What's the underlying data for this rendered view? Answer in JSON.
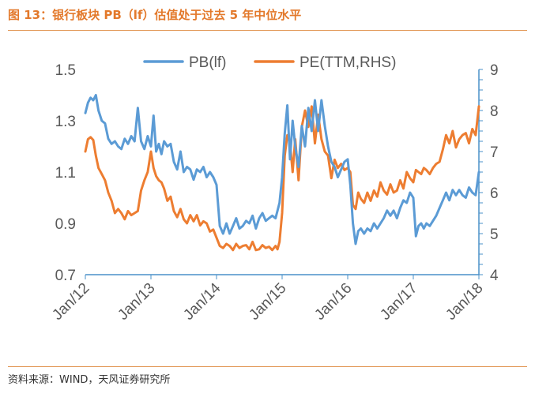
{
  "header": {
    "title": "图 13：银行板块 PB（lf）估值处于过去 5 年中位水平"
  },
  "footer": {
    "source": "资料来源：WIND，天风证券研究所"
  },
  "colors": {
    "pb": "#5b9bd5",
    "pe": "#ed7d31",
    "axis": "#4a90c8",
    "text": "#595959",
    "accent": "#e3792b"
  },
  "chart_data": {
    "type": "line",
    "title": "",
    "xlabel": "",
    "ylabel": "",
    "x_ticks": [
      "Jan/12",
      "Jan/13",
      "Jan/14",
      "Jan/15",
      "Jan/16",
      "Jan/17",
      "Jan/18"
    ],
    "xlim": [
      2012.0,
      2018.0
    ],
    "y_left": {
      "ylim": [
        0.7,
        1.5
      ],
      "ticks": [
        "1.5",
        "1.3",
        "1.1",
        "0.9",
        "0.7"
      ]
    },
    "y_right": {
      "ylim": [
        4,
        9
      ],
      "ticks": [
        "9",
        "8",
        "7",
        "6",
        "5",
        "4"
      ]
    },
    "legend": {
      "position": "top"
    },
    "series": [
      {
        "name": "PB(lf)",
        "axis": "left",
        "x": [
          2012.0,
          2012.04,
          2012.08,
          2012.12,
          2012.16,
          2012.2,
          2012.25,
          2012.3,
          2012.35,
          2012.4,
          2012.45,
          2012.5,
          2012.55,
          2012.6,
          2012.65,
          2012.7,
          2012.75,
          2012.8,
          2012.85,
          2012.9,
          2012.95,
          2013.0,
          2013.04,
          2013.08,
          2013.12,
          2013.16,
          2013.2,
          2013.25,
          2013.3,
          2013.35,
          2013.4,
          2013.45,
          2013.5,
          2013.55,
          2013.6,
          2013.65,
          2013.7,
          2013.75,
          2013.8,
          2013.85,
          2013.9,
          2013.95,
          2014.0,
          2014.05,
          2014.1,
          2014.15,
          2014.2,
          2014.25,
          2014.3,
          2014.35,
          2014.4,
          2014.45,
          2014.5,
          2014.55,
          2014.6,
          2014.65,
          2014.7,
          2014.75,
          2014.8,
          2014.85,
          2014.9,
          2014.93,
          2014.96,
          2015.0,
          2015.04,
          2015.08,
          2015.12,
          2015.16,
          2015.2,
          2015.25,
          2015.3,
          2015.35,
          2015.4,
          2015.45,
          2015.5,
          2015.55,
          2015.6,
          2015.65,
          2015.7,
          2015.75,
          2015.8,
          2015.85,
          2015.9,
          2015.95,
          2016.0,
          2016.04,
          2016.08,
          2016.12,
          2016.16,
          2016.2,
          2016.25,
          2016.3,
          2016.35,
          2016.4,
          2016.45,
          2016.5,
          2016.55,
          2016.6,
          2016.65,
          2016.7,
          2016.75,
          2016.8,
          2016.85,
          2016.9,
          2016.95,
          2017.0,
          2017.04,
          2017.08,
          2017.12,
          2017.16,
          2017.2,
          2017.25,
          2017.3,
          2017.35,
          2017.4,
          2017.45,
          2017.5,
          2017.55,
          2017.6,
          2017.65,
          2017.7,
          2017.75,
          2017.8,
          2017.85,
          2017.9,
          2017.95,
          2018.0
        ],
        "values": [
          1.33,
          1.37,
          1.39,
          1.38,
          1.4,
          1.34,
          1.3,
          1.29,
          1.23,
          1.21,
          1.22,
          1.2,
          1.19,
          1.23,
          1.21,
          1.24,
          1.22,
          1.35,
          1.22,
          1.19,
          1.24,
          1.2,
          1.32,
          1.18,
          1.21,
          1.17,
          1.22,
          1.2,
          1.21,
          1.14,
          1.11,
          1.18,
          1.1,
          1.12,
          1.11,
          1.07,
          1.11,
          1.1,
          1.12,
          1.08,
          1.1,
          1.08,
          1.05,
          0.89,
          0.86,
          0.9,
          0.86,
          0.89,
          0.92,
          0.88,
          0.89,
          0.91,
          0.9,
          0.93,
          0.88,
          0.92,
          0.94,
          0.91,
          0.92,
          0.93,
          0.92,
          0.95,
          0.98,
          1.08,
          1.25,
          1.36,
          1.15,
          1.3,
          1.2,
          1.12,
          1.28,
          1.2,
          1.35,
          1.26,
          1.38,
          1.26,
          1.38,
          1.28,
          1.2,
          1.14,
          1.12,
          1.08,
          1.11,
          1.14,
          1.15,
          1.05,
          0.9,
          0.82,
          0.87,
          0.88,
          0.86,
          0.88,
          0.87,
          0.9,
          0.88,
          0.9,
          0.92,
          0.95,
          0.93,
          0.95,
          0.92,
          0.96,
          0.99,
          0.98,
          1.02,
          1.0,
          0.85,
          0.89,
          0.9,
          0.88,
          0.9,
          0.89,
          0.91,
          0.93,
          0.96,
          0.99,
          1.02,
          0.99,
          1.03,
          1.01,
          1.03,
          1.01,
          1.0,
          1.04,
          1.02,
          1.01,
          1.1
        ]
      },
      {
        "name": "PE(TTM,RHS)",
        "axis": "right",
        "x": [
          2012.0,
          2012.04,
          2012.08,
          2012.12,
          2012.16,
          2012.2,
          2012.25,
          2012.3,
          2012.35,
          2012.4,
          2012.45,
          2012.5,
          2012.55,
          2012.6,
          2012.65,
          2012.7,
          2012.75,
          2012.8,
          2012.85,
          2012.9,
          2012.95,
          2013.0,
          2013.04,
          2013.08,
          2013.12,
          2013.16,
          2013.2,
          2013.25,
          2013.3,
          2013.35,
          2013.4,
          2013.45,
          2013.5,
          2013.55,
          2013.6,
          2013.65,
          2013.7,
          2013.75,
          2013.8,
          2013.85,
          2013.9,
          2013.95,
          2014.0,
          2014.05,
          2014.1,
          2014.15,
          2014.2,
          2014.25,
          2014.3,
          2014.35,
          2014.4,
          2014.45,
          2014.5,
          2014.55,
          2014.6,
          2014.65,
          2014.7,
          2014.75,
          2014.8,
          2014.85,
          2014.9,
          2014.93,
          2014.96,
          2015.0,
          2015.04,
          2015.08,
          2015.12,
          2015.16,
          2015.2,
          2015.25,
          2015.3,
          2015.35,
          2015.4,
          2015.45,
          2015.5,
          2015.55,
          2015.6,
          2015.65,
          2015.7,
          2015.75,
          2015.8,
          2015.85,
          2015.9,
          2015.95,
          2016.0,
          2016.04,
          2016.08,
          2016.12,
          2016.16,
          2016.2,
          2016.25,
          2016.3,
          2016.35,
          2016.4,
          2016.45,
          2016.5,
          2016.55,
          2016.6,
          2016.65,
          2016.7,
          2016.75,
          2016.8,
          2016.85,
          2016.9,
          2016.95,
          2017.0,
          2017.04,
          2017.08,
          2017.12,
          2017.16,
          2017.2,
          2017.25,
          2017.3,
          2017.35,
          2017.4,
          2017.45,
          2017.5,
          2017.55,
          2017.6,
          2017.65,
          2017.7,
          2017.75,
          2017.8,
          2017.85,
          2017.9,
          2017.95,
          2018.0
        ],
        "values": [
          7.0,
          7.3,
          7.35,
          7.28,
          6.9,
          6.6,
          6.45,
          6.3,
          6.0,
          5.8,
          5.5,
          5.6,
          5.5,
          5.35,
          5.55,
          5.45,
          5.5,
          5.55,
          6.05,
          6.3,
          6.5,
          7.0,
          6.6,
          6.4,
          6.3,
          6.25,
          6.1,
          5.8,
          5.9,
          5.55,
          5.4,
          5.6,
          5.35,
          5.25,
          5.45,
          5.3,
          5.45,
          5.2,
          5.3,
          5.25,
          5.05,
          5.1,
          4.9,
          4.7,
          4.65,
          4.75,
          4.7,
          4.6,
          4.75,
          4.65,
          4.7,
          4.72,
          4.62,
          4.8,
          4.6,
          4.62,
          4.72,
          4.65,
          4.68,
          4.6,
          4.7,
          4.62,
          4.8,
          5.5,
          6.9,
          7.4,
          7.2,
          6.5,
          7.3,
          6.3,
          7.6,
          8.0,
          7.6,
          8.1,
          7.2,
          7.9,
          7.3,
          7.0,
          6.9,
          6.35,
          6.8,
          6.6,
          6.7,
          6.55,
          6.6,
          6.5,
          5.7,
          5.6,
          6.0,
          5.85,
          5.75,
          6.0,
          5.8,
          6.05,
          5.9,
          6.25,
          6.05,
          5.95,
          6.2,
          6.0,
          6.05,
          6.3,
          6.1,
          6.5,
          6.35,
          6.25,
          6.55,
          6.5,
          6.45,
          6.6,
          6.55,
          6.45,
          6.6,
          6.7,
          6.75,
          7.05,
          7.4,
          7.2,
          7.5,
          7.1,
          7.3,
          7.4,
          7.45,
          7.2,
          7.55,
          7.4,
          8.1
        ]
      }
    ]
  }
}
